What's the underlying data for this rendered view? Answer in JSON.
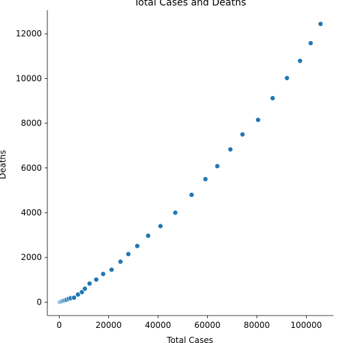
{
  "chart_data": {
    "type": "scatter",
    "title": "Total Cases and Deaths",
    "xlabel": "Total Cases",
    "ylabel": "Deaths",
    "xlim": [
      -4800,
      111000
    ],
    "ylim": [
      -600,
      13050
    ],
    "xticks": [
      0,
      20000,
      40000,
      60000,
      80000,
      100000
    ],
    "yticks": [
      0,
      2000,
      4000,
      6000,
      8000,
      10000,
      12000
    ],
    "grid": false,
    "point_color": "#1f77b4",
    "series": [
      {
        "x": [
          0,
          200,
          500,
          900,
          1300,
          1800,
          2400,
          3000,
          3800,
          4700,
          6000,
          7600,
          9200,
          10400,
          12300,
          15000,
          17800,
          21200,
          24800,
          28000,
          31600,
          36000,
          41000,
          47000,
          53600,
          59200,
          64000,
          69300,
          74200,
          80500,
          86400,
          92200,
          97500,
          101800,
          105800
        ],
        "y": [
          0,
          5,
          15,
          30,
          50,
          70,
          90,
          110,
          150,
          180,
          200,
          340,
          450,
          600,
          830,
          1010,
          1260,
          1450,
          1810,
          2150,
          2510,
          2970,
          3400,
          4000,
          4800,
          5500,
          6080,
          6830,
          7500,
          8150,
          9120,
          10020,
          10790,
          11580,
          12440
        ]
      }
    ]
  }
}
